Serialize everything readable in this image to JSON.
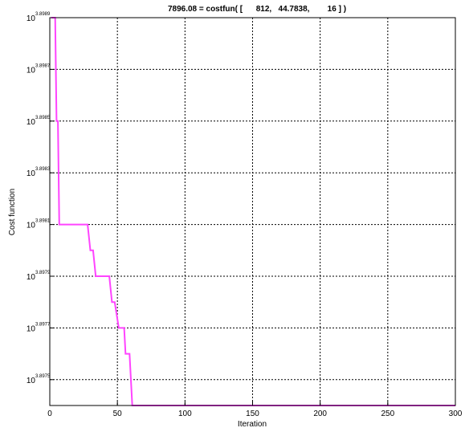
{
  "chart_data": {
    "type": "line",
    "title": "7896.08 = costfun( [      812,   44.7838,        16 ] )",
    "xlabel": "Iteration",
    "ylabel": "Cost function",
    "xlim": [
      0,
      300
    ],
    "ylim": [
      3.8974,
      3.8989
    ],
    "yscale": "log10",
    "grid": true,
    "line_color": "#ff44ff",
    "x_ticks": [
      "0",
      "50",
      "100",
      "150",
      "200",
      "250",
      "300"
    ],
    "y_ticks": [
      {
        "base": "10",
        "exp": "3.8989",
        "value": 3.8989
      },
      {
        "base": "10",
        "exp": "3.8987",
        "value": 3.8987
      },
      {
        "base": "10",
        "exp": "3.8985",
        "value": 3.8985
      },
      {
        "base": "10",
        "exp": "3.8983",
        "value": 3.8983
      },
      {
        "base": "10",
        "exp": "3.8981",
        "value": 3.8981
      },
      {
        "base": "10",
        "exp": "3.8979",
        "value": 3.8979
      },
      {
        "base": "10",
        "exp": "3.8977",
        "value": 3.8977
      },
      {
        "base": "10",
        "exp": "3.8975",
        "value": 3.8975
      }
    ],
    "series": [
      {
        "x": [
          1,
          4,
          5,
          6,
          7,
          28,
          30,
          32,
          34,
          44,
          46,
          48,
          51,
          52,
          55,
          56,
          59,
          61,
          62,
          64,
          70,
          72,
          100,
          102,
          300
        ],
        "y": [
          3.8989,
          3.8989,
          3.8985,
          3.8985,
          3.8981,
          3.8981,
          3.898,
          3.898,
          3.8979,
          3.8979,
          3.8978,
          3.8978,
          3.8977,
          3.8977,
          3.8977,
          3.8976,
          3.8976,
          3.8974,
          3.8974,
          3.8974,
          3.8974,
          3.8974,
          3.8974,
          3.8974,
          3.8974
        ]
      }
    ]
  }
}
